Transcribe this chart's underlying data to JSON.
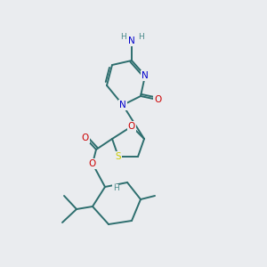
{
  "bg_color": "#eaecef",
  "bond_color": "#2d6e6e",
  "atom_colors": {
    "N": "#0000cc",
    "O": "#cc0000",
    "S": "#cccc00",
    "H": "#4a8a8a",
    "C": "#2d6e6e"
  },
  "figsize": [
    3.0,
    3.0
  ],
  "dpi": 100
}
